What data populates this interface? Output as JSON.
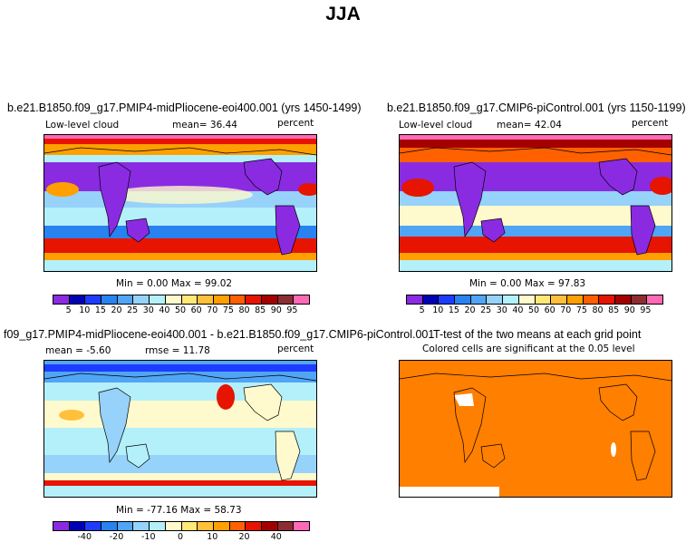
{
  "title": "JJA",
  "panels": [
    {
      "title": "b.e21.B1850.f09_g17.PMIP4-midPliocene-eoi400.001 (yrs 1450-1499)",
      "variable": "Low-level cloud",
      "stat": "mean=   36.44",
      "units": "percent",
      "minmax": "Min =    0.00 Max =   99.02"
    },
    {
      "title": "b.e21.B1850.f09_g17.CMIP6-piControl.001 (yrs 1150-1199)",
      "variable": "Low-level cloud",
      "stat": "mean=   42.04",
      "units": "percent",
      "minmax": "Min =    0.00 Max =   97.83"
    },
    {
      "title": "f09_g17.PMIP4-midPliocene-eoi400.001 - b.e21.B1850.f09_g17.CMIP6-piControl.001",
      "stat": "mean =  -5.60",
      "rmse": "rmse =   11.78",
      "units": "percent",
      "minmax": "Min = -77.16 Max =  58.73"
    },
    {
      "title": "T-test of the two means at each grid point",
      "subtitle": "Colored cells are significant at the 0.05 level"
    }
  ],
  "colorbar_abs": {
    "colors": [
      "#8a2be2",
      "#0000b4",
      "#1e3cff",
      "#2882f0",
      "#50a5f5",
      "#96d2fa",
      "#b4f0fa",
      "#fffacd",
      "#ffe878",
      "#ffc03c",
      "#ffa000",
      "#ff6000",
      "#e61400",
      "#a50000",
      "#8c2d32",
      "#ff69b4"
    ],
    "labels": [
      "5",
      "10",
      "15",
      "20",
      "25",
      "30",
      "40",
      "50",
      "60",
      "70",
      "75",
      "80",
      "85",
      "90",
      "95"
    ]
  },
  "colorbar_diff": {
    "colors": [
      "#8a2be2",
      "#0000b4",
      "#1e3cff",
      "#2882f0",
      "#50a5f5",
      "#96d2fa",
      "#b4f0fa",
      "#fffacd",
      "#ffe878",
      "#ffc03c",
      "#ffa000",
      "#ff6000",
      "#e61400",
      "#a50000",
      "#8c2d32",
      "#ff69b4"
    ],
    "labels": [
      "-40",
      "-20",
      "-10",
      "0",
      "10",
      "20",
      "40"
    ]
  },
  "significance_color": "#ff7f00"
}
